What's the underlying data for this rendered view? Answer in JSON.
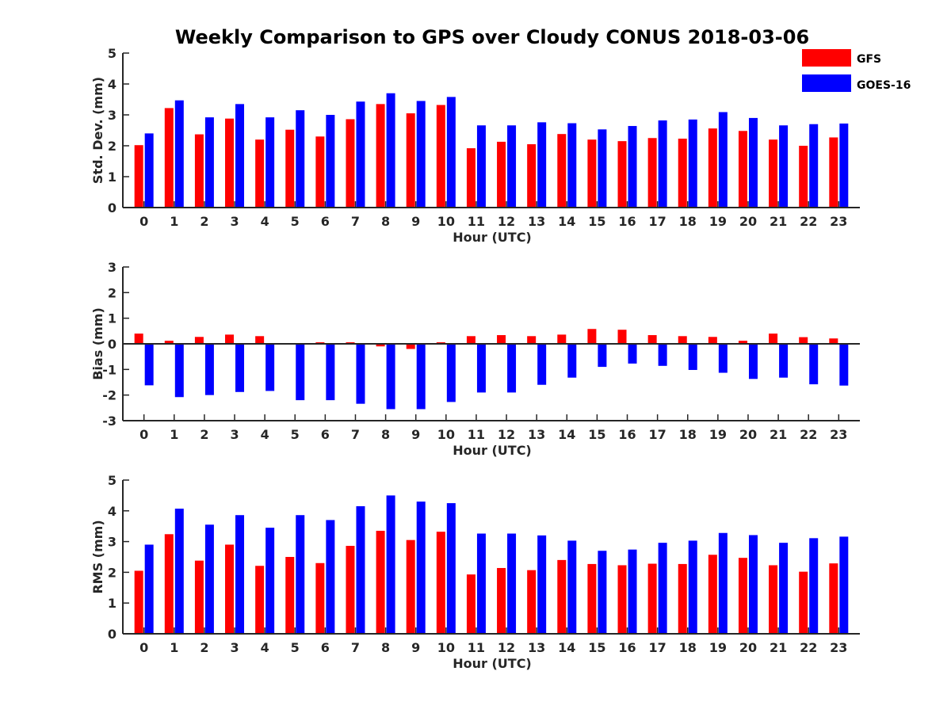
{
  "chart_data": {
    "title": "Weekly Comparison to GPS over Cloudy CONUS 2018-03-06",
    "legend": {
      "placement": "top-right",
      "entries": [
        {
          "name": "GFS",
          "color": "#ff0000"
        },
        {
          "name": "GOES-16",
          "color": "#0000ff"
        }
      ]
    },
    "categories": [
      "0",
      "1",
      "2",
      "3",
      "4",
      "5",
      "6",
      "7",
      "8",
      "9",
      "10",
      "11",
      "12",
      "13",
      "14",
      "15",
      "16",
      "17",
      "18",
      "19",
      "20",
      "21",
      "22",
      "23"
    ],
    "panels": [
      {
        "type": "bar",
        "xlabel": "Hour (UTC)",
        "ylabel": "Std. Dev. (mm)",
        "ylim": [
          0,
          5
        ],
        "yticks": [
          "0",
          "1",
          "2",
          "3",
          "4",
          "5"
        ],
        "zero_line": false,
        "series": [
          {
            "name": "GFS",
            "color": "#ff0000",
            "values": [
              2.02,
              3.22,
              2.37,
              2.88,
              2.2,
              2.52,
              2.3,
              2.86,
              3.35,
              3.05,
              3.32,
              1.92,
              2.13,
              2.05,
              2.38,
              2.2,
              2.15,
              2.25,
              2.23,
              2.56,
              2.48,
              2.2,
              2.0,
              2.27
            ]
          },
          {
            "name": "GOES-16",
            "color": "#0000ff",
            "values": [
              2.4,
              3.47,
              2.92,
              3.35,
              2.92,
              3.15,
              3.0,
              3.43,
              3.7,
              3.45,
              3.58,
              2.66,
              2.66,
              2.76,
              2.73,
              2.53,
              2.64,
              2.82,
              2.85,
              3.09,
              2.9,
              2.66,
              2.7,
              2.72
            ]
          }
        ]
      },
      {
        "type": "bar",
        "xlabel": "Hour (UTC)",
        "ylabel": "Bias (mm)",
        "ylim": [
          -3,
          3
        ],
        "yticks": [
          "-3",
          "-2",
          "-1",
          "0",
          "1",
          "2",
          "3"
        ],
        "zero_line": true,
        "series": [
          {
            "name": "GFS",
            "color": "#ff0000",
            "values": [
              0.4,
              0.12,
              0.27,
              0.36,
              0.3,
              0.02,
              0.06,
              0.06,
              -0.1,
              -0.2,
              0.06,
              0.3,
              0.34,
              0.3,
              0.36,
              0.58,
              0.55,
              0.34,
              0.3,
              0.27,
              0.12,
              0.4,
              0.26,
              0.21
            ]
          },
          {
            "name": "GOES-16",
            "color": "#0000ff",
            "values": [
              -1.62,
              -2.08,
              -2.0,
              -1.88,
              -1.84,
              -2.2,
              -2.2,
              -2.34,
              -2.55,
              -2.55,
              -2.27,
              -1.9,
              -1.9,
              -1.6,
              -1.32,
              -0.9,
              -0.77,
              -0.86,
              -1.02,
              -1.13,
              -1.37,
              -1.32,
              -1.58,
              -1.63
            ]
          }
        ]
      },
      {
        "type": "bar",
        "xlabel": "Hour (UTC)",
        "ylabel": "RMS (mm)",
        "ylim": [
          0,
          5
        ],
        "yticks": [
          "0",
          "1",
          "2",
          "3",
          "4",
          "5"
        ],
        "zero_line": false,
        "series": [
          {
            "name": "GFS",
            "color": "#ff0000",
            "values": [
              2.05,
              3.24,
              2.38,
              2.9,
              2.21,
              2.5,
              2.3,
              2.86,
              3.35,
              3.05,
              3.32,
              1.93,
              2.14,
              2.07,
              2.4,
              2.27,
              2.23,
              2.28,
              2.27,
              2.57,
              2.47,
              2.23,
              2.02,
              2.29
            ]
          },
          {
            "name": "GOES-16",
            "color": "#0000ff",
            "values": [
              2.9,
              4.07,
              3.55,
              3.86,
              3.45,
              3.86,
              3.7,
              4.15,
              4.5,
              4.3,
              4.25,
              3.26,
              3.26,
              3.2,
              3.03,
              2.7,
              2.74,
              2.96,
              3.03,
              3.28,
              3.21,
              2.96,
              3.11,
              3.16
            ]
          }
        ]
      }
    ]
  }
}
